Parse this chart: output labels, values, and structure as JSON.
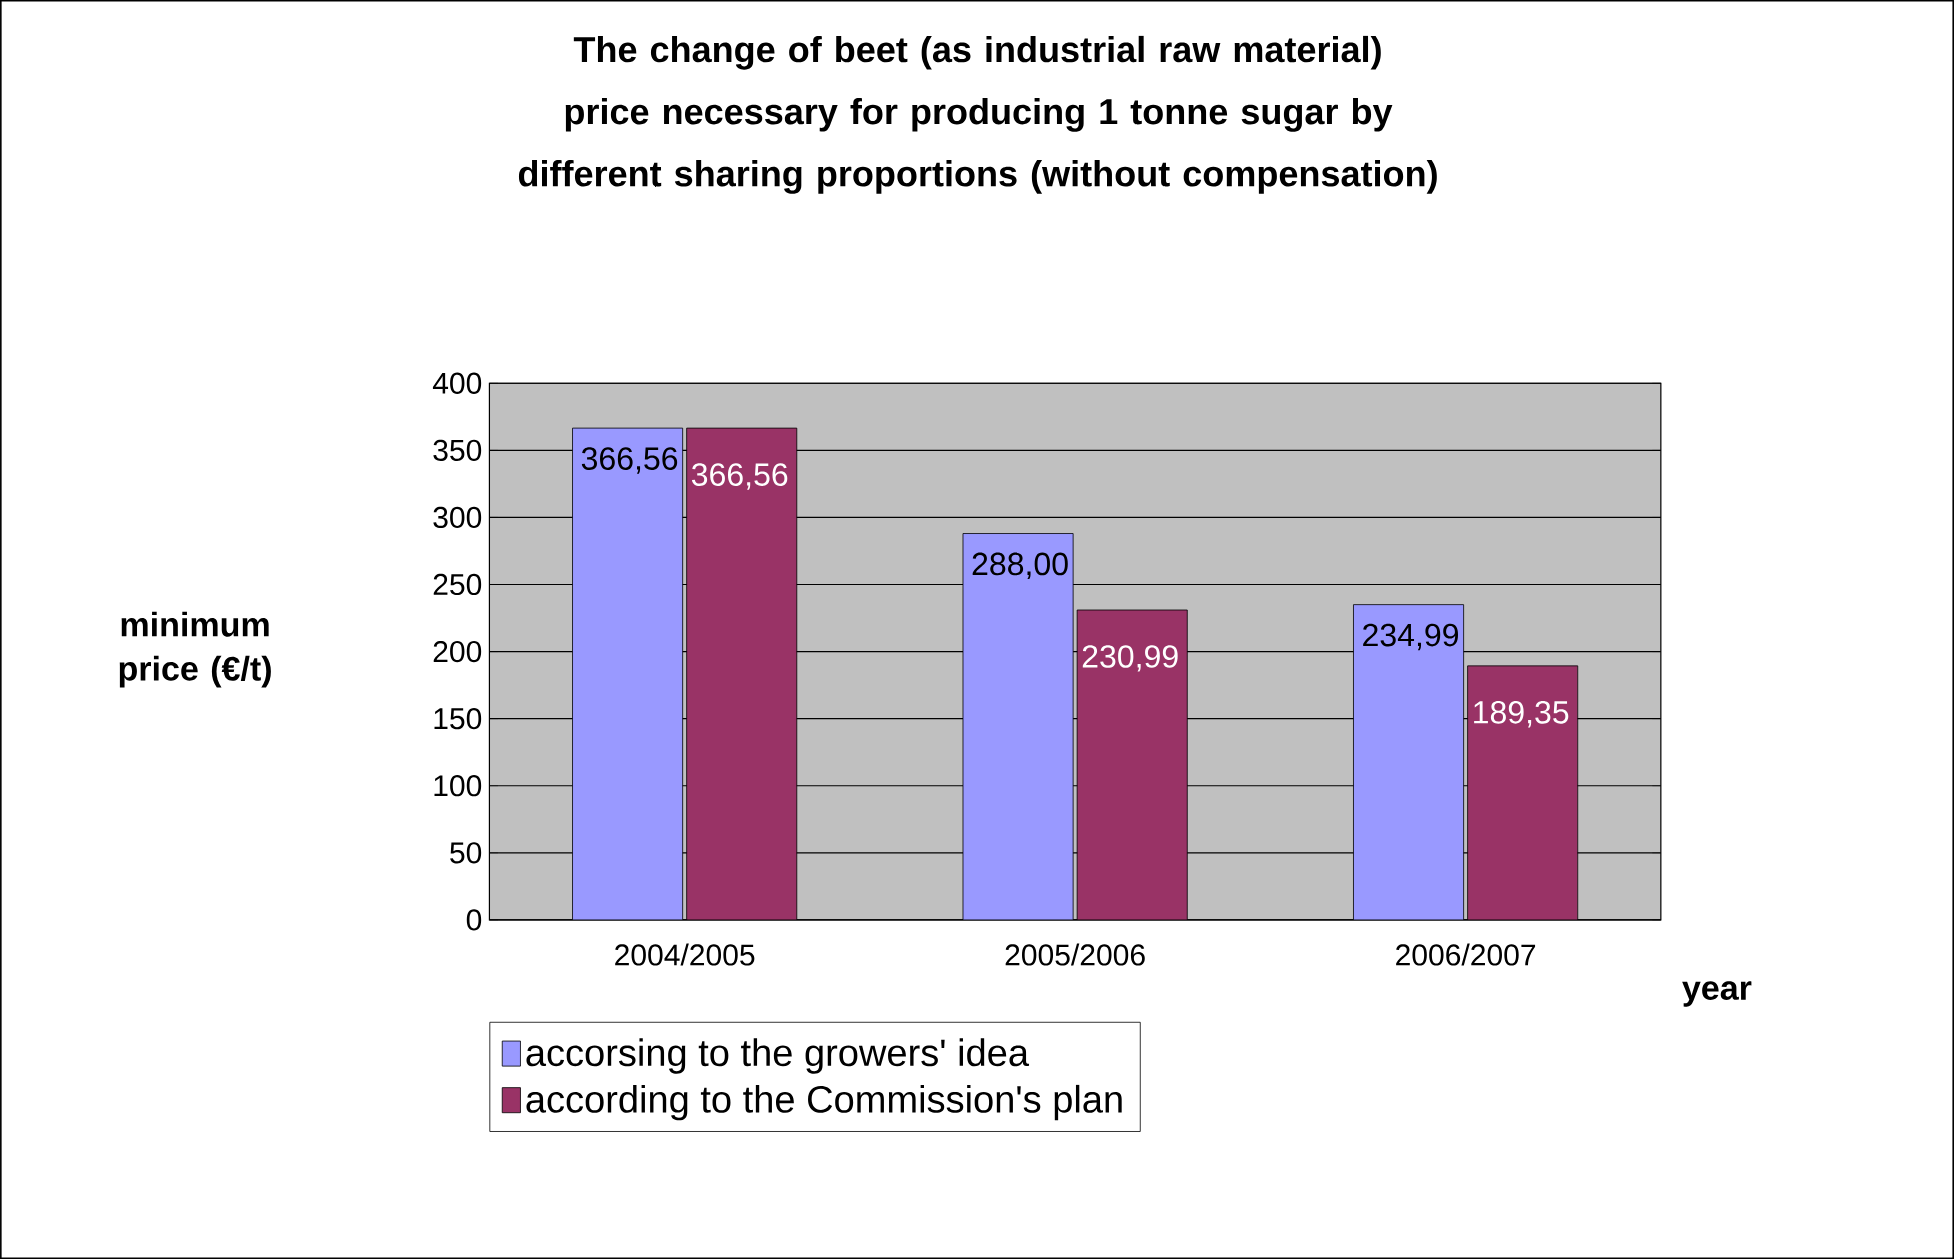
{
  "chart_data": {
    "type": "bar",
    "title": "The change of beet (as industrial raw material) price necessary for producing 1 tonne sugar by different sharing proportions (without compensation)",
    "xlabel": "year",
    "ylabel": "minimum price (€/t)",
    "categories": [
      "2004/2005",
      "2005/2006",
      "2006/2007"
    ],
    "series": [
      {
        "name": "accorsing to the growers' idea",
        "color": "#9999ff",
        "values": [
          366.56,
          288.0,
          234.99
        ],
        "value_labels": [
          "366,56",
          "288,00",
          "234,99"
        ]
      },
      {
        "name": "according to the Commission's plan",
        "color": "#993366",
        "values": [
          366.56,
          230.99,
          189.35
        ],
        "value_labels": [
          "366,56",
          "230,99",
          "189,35"
        ]
      }
    ],
    "ylim": [
      0,
      400
    ],
    "yticks": [
      0,
      50,
      100,
      150,
      200,
      250,
      300,
      350,
      400
    ],
    "grid": "y",
    "legend": "bottom"
  }
}
